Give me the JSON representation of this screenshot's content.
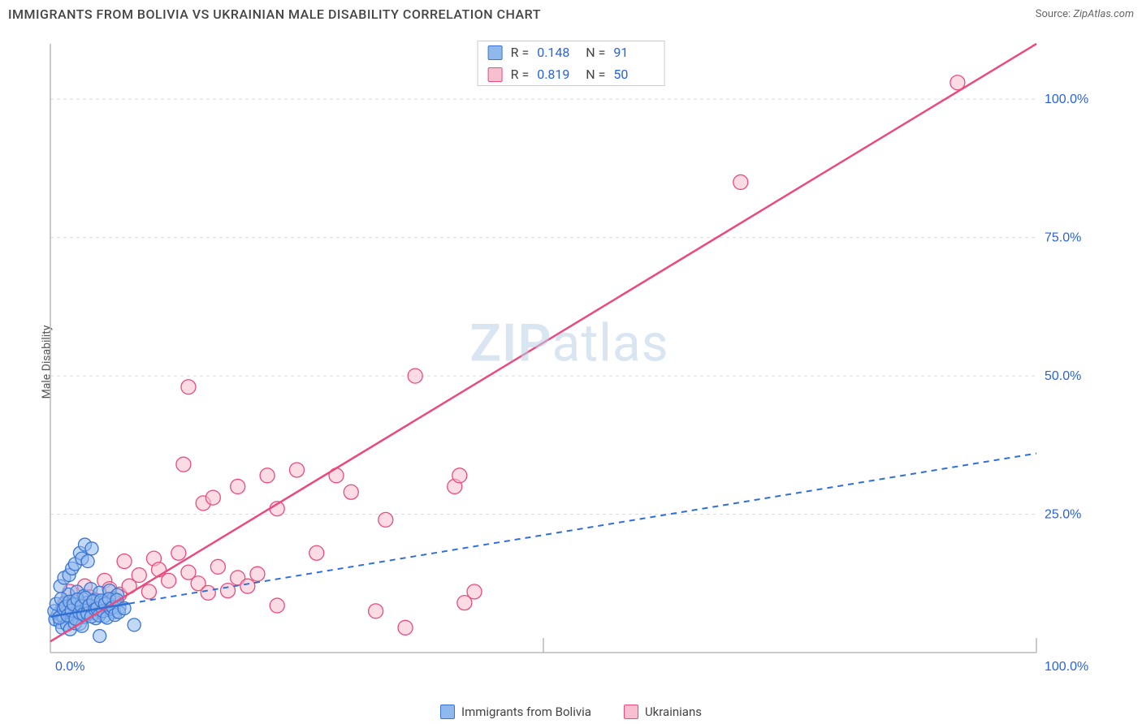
{
  "title": "IMMIGRANTS FROM BOLIVIA VS UKRAINIAN MALE DISABILITY CORRELATION CHART",
  "source_label": "Source:",
  "source_value": "ZipAtlas.com",
  "ylabel": "Male Disability",
  "watermark_a": "ZIP",
  "watermark_b": "atlas",
  "chart": {
    "type": "scatter",
    "xlim": [
      0,
      100
    ],
    "ylim": [
      0,
      110
    ],
    "x_ticks": [
      0,
      100
    ],
    "x_tick_labels": [
      "0.0%",
      "100.0%"
    ],
    "y_ticks": [
      25,
      50,
      75,
      100
    ],
    "y_tick_labels": [
      "25.0%",
      "50.0%",
      "75.0%",
      "100.0%"
    ],
    "tick_color": "#2962d9",
    "tick_fontsize": 16,
    "grid_color": "#dcdcdc",
    "axis_color": "#b8b8b8",
    "background_color": "#ffffff",
    "x_axis_vertical_marker": 50
  },
  "series": {
    "bolivia": {
      "label": "Immigrants from Bolivia",
      "R": "0.148",
      "N": "91",
      "marker_fill": "#8fb8ec",
      "marker_stroke": "#3b75d1",
      "marker_opacity": 0.55,
      "marker_radius": 8,
      "line_color": "#2f6fd6",
      "line_dash": "7 6",
      "line_width": 2,
      "line_solid_until": 8,
      "trend": {
        "x1": 0,
        "y1": 6.5,
        "x2": 100,
        "y2": 36
      },
      "points": [
        [
          0.5,
          6
        ],
        [
          0.8,
          7
        ],
        [
          1.0,
          5.5
        ],
        [
          1.2,
          8
        ],
        [
          1.3,
          6.5
        ],
        [
          1.5,
          9
        ],
        [
          1.6,
          7.2
        ],
        [
          1.8,
          10.5
        ],
        [
          2.0,
          6.8
        ],
        [
          2.1,
          8.5
        ],
        [
          2.3,
          7
        ],
        [
          2.4,
          9.3
        ],
        [
          2.6,
          6
        ],
        [
          2.7,
          11
        ],
        [
          2.8,
          7.8
        ],
        [
          3.0,
          5.2
        ],
        [
          3.1,
          8.8
        ],
        [
          3.3,
          6.4
        ],
        [
          3.4,
          10.2
        ],
        [
          3.6,
          7.5
        ],
        [
          3.7,
          9
        ],
        [
          3.8,
          6.9
        ],
        [
          4.0,
          8.2
        ],
        [
          4.1,
          11.5
        ],
        [
          4.3,
          7.1
        ],
        [
          4.5,
          9.5
        ],
        [
          4.6,
          6.2
        ],
        [
          4.8,
          8.6
        ],
        [
          5.0,
          10.8
        ],
        [
          5.1,
          7.4
        ],
        [
          5.3,
          9.1
        ],
        [
          5.5,
          6.6
        ],
        [
          5.7,
          8.9
        ],
        [
          5.9,
          7.7
        ],
        [
          6.0,
          11.2
        ],
        [
          6.2,
          8.4
        ],
        [
          6.4,
          9.8
        ],
        [
          6.5,
          7.3
        ],
        [
          6.8,
          10.4
        ],
        [
          7.0,
          8.1
        ],
        [
          1.0,
          12
        ],
        [
          1.4,
          13.5
        ],
        [
          1.9,
          14
        ],
        [
          2.2,
          15.2
        ],
        [
          2.5,
          16
        ],
        [
          3.0,
          18
        ],
        [
          3.2,
          17
        ],
        [
          3.5,
          19.5
        ],
        [
          3.8,
          16.5
        ],
        [
          4.2,
          18.8
        ],
        [
          1.2,
          4.5
        ],
        [
          1.7,
          5
        ],
        [
          2.0,
          4.2
        ],
        [
          2.5,
          5.3
        ],
        [
          3.2,
          4.8
        ],
        [
          0.4,
          7.5
        ],
        [
          0.6,
          8.8
        ],
        [
          0.9,
          6.3
        ],
        [
          1.1,
          9.7
        ],
        [
          1.35,
          7.9
        ],
        [
          1.55,
          8.3
        ],
        [
          1.75,
          6.7
        ],
        [
          1.95,
          9.2
        ],
        [
          2.15,
          7.6
        ],
        [
          2.35,
          8.7
        ],
        [
          2.55,
          6.1
        ],
        [
          2.75,
          9.6
        ],
        [
          2.95,
          7.2
        ],
        [
          3.15,
          8.4
        ],
        [
          3.35,
          6.9
        ],
        [
          3.55,
          9.9
        ],
        [
          3.75,
          7.1
        ],
        [
          3.95,
          8.5
        ],
        [
          4.15,
          6.5
        ],
        [
          4.35,
          9.3
        ],
        [
          4.55,
          7.8
        ],
        [
          4.75,
          8.0
        ],
        [
          4.95,
          6.7
        ],
        [
          5.15,
          9.4
        ],
        [
          5.35,
          7.5
        ],
        [
          5.55,
          8.8
        ],
        [
          5.75,
          6.3
        ],
        [
          5.95,
          9.7
        ],
        [
          6.15,
          7.9
        ],
        [
          6.35,
          8.2
        ],
        [
          6.55,
          6.8
        ],
        [
          6.75,
          9.5
        ],
        [
          6.95,
          7.3
        ],
        [
          7.5,
          8.0
        ],
        [
          8.5,
          5.0
        ],
        [
          5.0,
          3.0
        ]
      ]
    },
    "ukrainians": {
      "label": "Ukrainians",
      "R": "0.819",
      "N": "50",
      "marker_fill": "#f7bfd0",
      "marker_stroke": "#e94b7e",
      "marker_opacity": 0.55,
      "marker_radius": 9,
      "line_color": "#e94b7e",
      "line_dash": "none",
      "line_width": 2.5,
      "trend": {
        "x1": 0,
        "y1": 2,
        "x2": 100,
        "y2": 110
      },
      "points": [
        [
          1.5,
          9
        ],
        [
          2,
          11
        ],
        [
          3,
          8.5
        ],
        [
          3.5,
          12
        ],
        [
          4,
          10
        ],
        [
          5,
          8
        ],
        [
          5.5,
          13
        ],
        [
          6,
          11.5
        ],
        [
          7,
          10.5
        ],
        [
          7.5,
          16.5
        ],
        [
          8,
          12
        ],
        [
          9,
          14
        ],
        [
          10,
          11
        ],
        [
          10.5,
          17
        ],
        [
          11,
          15
        ],
        [
          12,
          13
        ],
        [
          13,
          18
        ],
        [
          14,
          14.5
        ],
        [
          15,
          12.5
        ],
        [
          16,
          10.8
        ],
        [
          17,
          15.5
        ],
        [
          18,
          11.2
        ],
        [
          19,
          13.5
        ],
        [
          20,
          12
        ],
        [
          21,
          14.2
        ],
        [
          23,
          8.5
        ],
        [
          13.5,
          34
        ],
        [
          14,
          48
        ],
        [
          15.5,
          27
        ],
        [
          16.5,
          28
        ],
        [
          19,
          30
        ],
        [
          22,
          32
        ],
        [
          23,
          26
        ],
        [
          25,
          33
        ],
        [
          27,
          18
        ],
        [
          29,
          32
        ],
        [
          30.5,
          29
        ],
        [
          33,
          7.5
        ],
        [
          34,
          24
        ],
        [
          36,
          4.5
        ],
        [
          37,
          50
        ],
        [
          41,
          30
        ],
        [
          41.5,
          32
        ],
        [
          42,
          9
        ],
        [
          43,
          11
        ],
        [
          70,
          85
        ],
        [
          92,
          103
        ],
        [
          3,
          7
        ],
        [
          4.5,
          9.5
        ],
        [
          6.5,
          9
        ]
      ]
    }
  },
  "stats_legend": {
    "r_label": "R =",
    "n_label": "N ="
  }
}
